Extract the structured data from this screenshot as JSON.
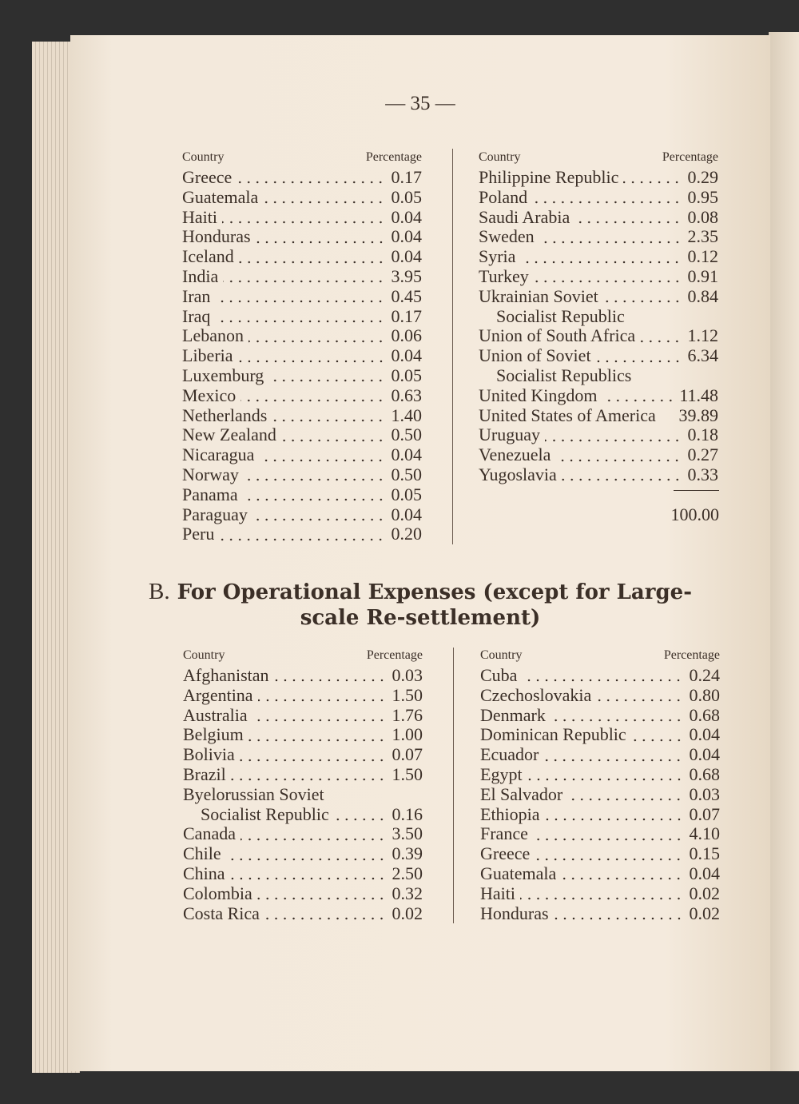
{
  "page_number": "— 35 —",
  "section_a": {
    "headers": {
      "country": "Country",
      "percentage": "Percentage"
    },
    "left": [
      {
        "name": "Greece",
        "value": "0.17"
      },
      {
        "name": "Guatemala",
        "value": "0.05"
      },
      {
        "name": "Haiti",
        "value": "0.04"
      },
      {
        "name": "Honduras",
        "value": "0.04"
      },
      {
        "name": "Iceland",
        "value": "0.04"
      },
      {
        "name": "India",
        "value": "3.95"
      },
      {
        "name": "Iran",
        "value": "0.45"
      },
      {
        "name": "Iraq",
        "value": "0.17"
      },
      {
        "name": "Lebanon",
        "value": "0.06"
      },
      {
        "name": "Liberia",
        "value": "0.04"
      },
      {
        "name": "Luxemburg",
        "value": "0.05"
      },
      {
        "name": "Mexico",
        "value": "0.63"
      },
      {
        "name": "Netherlands",
        "value": "1.40"
      },
      {
        "name": "New Zealand",
        "value": "0.50"
      },
      {
        "name": "Nicaragua",
        "value": "0.04"
      },
      {
        "name": "Norway",
        "value": "0.50"
      },
      {
        "name": "Panama",
        "value": "0.05"
      },
      {
        "name": "Paraguay",
        "value": "0.04"
      },
      {
        "name": "Peru",
        "value": "0.20"
      }
    ],
    "right": [
      {
        "name": "Philippine Republic",
        "value": "0.29"
      },
      {
        "name": "Poland",
        "value": "0.95"
      },
      {
        "name": "Saudi Arabia",
        "value": "0.08"
      },
      {
        "name": "Sweden",
        "value": "2.35"
      },
      {
        "name": "Syria",
        "value": "0.12"
      },
      {
        "name": "Turkey",
        "value": "0.91"
      },
      {
        "name": "Ukrainian Soviet",
        "value": "0.84"
      },
      {
        "name": "Socialist Republic",
        "cont": true
      },
      {
        "name": "Union of South Africa",
        "value": "1.12"
      },
      {
        "name": "Union of Soviet",
        "value": "6.34"
      },
      {
        "name": "Socialist Republics",
        "cont": true
      },
      {
        "name": "United Kingdom",
        "value": "11.48"
      },
      {
        "name": "United States of America",
        "value": "39.89",
        "noleader": true
      },
      {
        "name": "Uruguay",
        "value": "0.18"
      },
      {
        "name": "Venezuela",
        "value": "0.27"
      },
      {
        "name": "Yugoslavia",
        "value": "0.33"
      }
    ],
    "total": "100.00"
  },
  "section_b": {
    "title_prefix": "B.",
    "title_line1": "For Operational Expenses (except for Large-",
    "title_line2": "scale Re-settlement)",
    "headers": {
      "country": "Country",
      "percentage": "Percentage"
    },
    "left": [
      {
        "name": "Afghanistan",
        "value": "0.03"
      },
      {
        "name": "Argentina",
        "value": "1.50"
      },
      {
        "name": "Australia",
        "value": "1.76"
      },
      {
        "name": "Belgium",
        "value": "1.00"
      },
      {
        "name": "Bolivia",
        "value": "0.07"
      },
      {
        "name": "Brazil",
        "value": "1.50"
      },
      {
        "name": "Byelorussian Soviet",
        "noleader": true
      },
      {
        "name": "Socialist Republic",
        "value": "0.16",
        "cont": true
      },
      {
        "name": "Canada",
        "value": "3.50"
      },
      {
        "name": "Chile",
        "value": "0.39"
      },
      {
        "name": "China",
        "value": "2.50"
      },
      {
        "name": "Colombia",
        "value": "0.32"
      },
      {
        "name": "Costa Rica",
        "value": "0.02"
      }
    ],
    "right": [
      {
        "name": "Cuba",
        "value": "0.24"
      },
      {
        "name": "Czechoslovakia",
        "value": "0.80"
      },
      {
        "name": "Denmark",
        "value": "0.68"
      },
      {
        "name": "Dominican Republic",
        "value": "0.04"
      },
      {
        "name": "Ecuador",
        "value": "0.04"
      },
      {
        "name": "Egypt",
        "value": "0.68"
      },
      {
        "name": "El Salvador",
        "value": "0.03"
      },
      {
        "name": "Ethiopia",
        "value": "0.07"
      },
      {
        "name": "France",
        "value": "4.10"
      },
      {
        "name": "Greece",
        "value": "0.15"
      },
      {
        "name": "Guatemala",
        "value": "0.04"
      },
      {
        "name": "Haiti",
        "value": "0.02"
      },
      {
        "name": "Honduras",
        "value": "0.02"
      }
    ]
  }
}
